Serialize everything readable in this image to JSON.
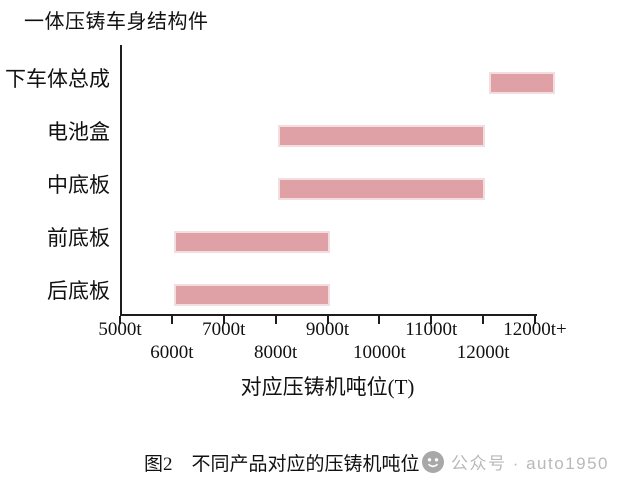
{
  "chart_data": {
    "type": "bar",
    "variant": "horizontal-range-bars",
    "title": "一体压铸车身结构件",
    "xlabel": "对应压铸机吨位(T)",
    "xlim": [
      5000,
      13000
    ],
    "grid": false,
    "legend": null,
    "xticks": [
      {
        "value": 5000,
        "label": "5000t",
        "row": "upper"
      },
      {
        "value": 6000,
        "label": "6000t",
        "row": "lower"
      },
      {
        "value": 7000,
        "label": "7000t",
        "row": "upper"
      },
      {
        "value": 8000,
        "label": "8000t",
        "row": "lower"
      },
      {
        "value": 9000,
        "label": "9000t",
        "row": "upper"
      },
      {
        "value": 10000,
        "label": "10000t",
        "row": "lower"
      },
      {
        "value": 11000,
        "label": "11000t",
        "row": "upper"
      },
      {
        "value": 12000,
        "label": "12000t",
        "row": "lower"
      },
      {
        "value": 13000,
        "label": "12000t+",
        "row": "upper"
      }
    ],
    "bars": [
      {
        "category": "下车体总成",
        "start": 12070,
        "end": 13350
      },
      {
        "category": "电池盒",
        "start": 8000,
        "end": 12000
      },
      {
        "category": "中底板",
        "start": 8000,
        "end": 12000
      },
      {
        "category": "前底板",
        "start": 6000,
        "end": 9000
      },
      {
        "category": "后底板",
        "start": 6000,
        "end": 9000
      }
    ],
    "colors": {
      "bar_fill": "#dfa1a6",
      "bar_border": "#f3dedf",
      "axis": "#1d1d1d",
      "text": "#111111",
      "watermark": "#b9b9b9"
    }
  },
  "caption": {
    "text": "图2　不同产品对应的压铸机吨位"
  },
  "watermark": {
    "icon": "wechat-official-account",
    "text": "公众号 · auto1950"
  }
}
